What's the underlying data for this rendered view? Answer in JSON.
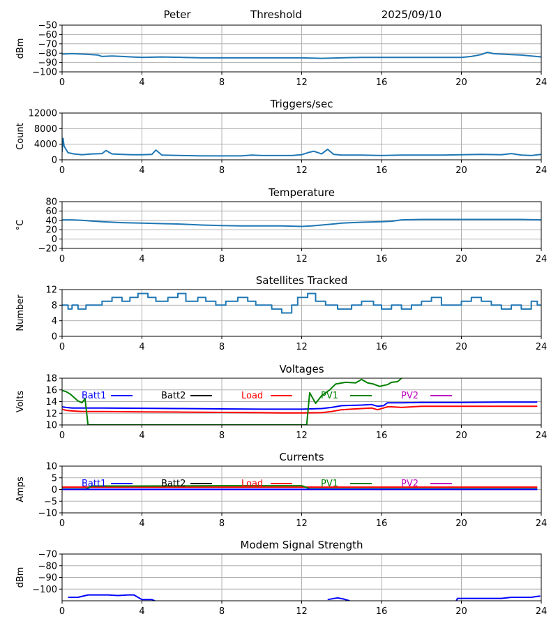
{
  "header": {
    "station": "Peter",
    "mode": "Threshold",
    "date": "2025/09/10"
  },
  "colors": {
    "series": "#1f77b4",
    "batt1": "#0000ff",
    "batt2": "#000000",
    "load": "#ff0000",
    "pv1": "#008000",
    "pv2": "#bf00bf",
    "grid": "#b0b0b0"
  },
  "chart_data": [
    {
      "type": "line",
      "title": "",
      "xlabel": "",
      "ylabel": "dBm",
      "xlim": [
        0,
        24
      ],
      "ylim": [
        -100,
        -50
      ],
      "xticks": [
        0,
        4,
        8,
        12,
        16,
        20,
        24
      ],
      "yticks": [
        -100,
        -90,
        -80,
        -70,
        -60,
        -50
      ],
      "ytick_labels": [
        "−100",
        "−90",
        "−80",
        "−70",
        "−60",
        "−50"
      ],
      "grid": true,
      "series": [
        {
          "color": "#1f77b4",
          "x": [
            0,
            0.5,
            1,
            1.5,
            1.8,
            2,
            2.5,
            3,
            3.5,
            4,
            5,
            6,
            7,
            8,
            9,
            10,
            11,
            12,
            13,
            14,
            15,
            16,
            17,
            18,
            19,
            20,
            20.5,
            21,
            21.3,
            21.6,
            22,
            22.5,
            23,
            23.5,
            24
          ],
          "y": [
            -81,
            -80.5,
            -81,
            -81.5,
            -82,
            -83.5,
            -83,
            -83.5,
            -84,
            -84.5,
            -84,
            -84.5,
            -85,
            -85,
            -85,
            -85,
            -85,
            -85,
            -85.5,
            -85,
            -84.5,
            -84.5,
            -84.5,
            -84.5,
            -84.5,
            -84.5,
            -83.5,
            -81.5,
            -79,
            -80.5,
            -81,
            -81.5,
            -82,
            -83,
            -84
          ]
        }
      ]
    },
    {
      "type": "line",
      "title": "Triggers/sec",
      "xlabel": "",
      "ylabel": "Count",
      "xlim": [
        0,
        24
      ],
      "ylim": [
        0,
        12000
      ],
      "xticks": [
        0,
        4,
        8,
        12,
        16,
        20,
        24
      ],
      "yticks": [
        0,
        4000,
        8000,
        12000
      ],
      "ytick_labels": [
        "0",
        "4000",
        "8000",
        "12000"
      ],
      "grid": true,
      "series": [
        {
          "color": "#1f77b4",
          "x": [
            0,
            0.05,
            0.1,
            0.3,
            0.6,
            1,
            1.5,
            2,
            2.2,
            2.5,
            3,
            3.5,
            4,
            4.5,
            4.7,
            5,
            6,
            7,
            8,
            9,
            9.5,
            10,
            11,
            11.5,
            12,
            12.3,
            12.6,
            13,
            13.3,
            13.6,
            14,
            15,
            16,
            17,
            18,
            19,
            20,
            21,
            22,
            22.5,
            23,
            23.5,
            24
          ],
          "y": [
            2000,
            5500,
            3500,
            1800,
            1500,
            1300,
            1500,
            1600,
            2400,
            1500,
            1400,
            1300,
            1300,
            1400,
            2500,
            1200,
            1100,
            1000,
            1000,
            1000,
            1200,
            1100,
            1100,
            1100,
            1300,
            1800,
            2200,
            1500,
            2700,
            1400,
            1200,
            1200,
            1100,
            1200,
            1200,
            1200,
            1300,
            1400,
            1300,
            1600,
            1200,
            1100,
            1400
          ]
        }
      ]
    },
    {
      "type": "line",
      "title": "Temperature",
      "xlabel": "",
      "ylabel": "°C",
      "xlim": [
        0,
        24
      ],
      "ylim": [
        -20,
        80
      ],
      "xticks": [
        0,
        4,
        8,
        12,
        16,
        20,
        24
      ],
      "yticks": [
        -20,
        0,
        20,
        40,
        60,
        80
      ],
      "ytick_labels": [
        "−20",
        "0",
        "20",
        "40",
        "60",
        "80"
      ],
      "grid": true,
      "series": [
        {
          "color": "#1f77b4",
          "x": [
            0,
            0.5,
            1,
            2,
            3,
            4,
            5,
            6,
            7,
            8,
            9,
            10,
            11,
            12,
            12.5,
            13,
            13.5,
            14,
            15,
            16,
            16.5,
            17,
            18,
            19,
            20,
            21,
            22,
            23,
            24
          ],
          "y": [
            41,
            41,
            40,
            37,
            35,
            34,
            33,
            32,
            30,
            29,
            28,
            28,
            28,
            27,
            28,
            30,
            32,
            34,
            36,
            37,
            38,
            41,
            42,
            42,
            42,
            42,
            42,
            42,
            41
          ]
        }
      ]
    },
    {
      "type": "line",
      "title": "Satellites Tracked",
      "xlabel": "",
      "ylabel": "Number",
      "xlim": [
        0,
        24
      ],
      "ylim": [
        0,
        12
      ],
      "xticks": [
        0,
        4,
        8,
        12,
        16,
        20,
        24
      ],
      "yticks": [
        0,
        4,
        8,
        12
      ],
      "ytick_labels": [
        "0",
        "4",
        "8",
        "12"
      ],
      "grid": true,
      "series": [
        {
          "color": "#1f77b4",
          "step": true,
          "x": [
            0,
            0.3,
            0.5,
            0.8,
            1.2,
            2,
            2.5,
            3,
            3.4,
            3.8,
            4.3,
            4.7,
            5.3,
            5.8,
            6.2,
            6.8,
            7.2,
            7.7,
            8.2,
            8.8,
            9.3,
            9.7,
            10.5,
            11,
            11.5,
            11.8,
            12.3,
            12.7,
            13.2,
            13.8,
            14.5,
            15,
            15.6,
            16,
            16.5,
            17,
            17.5,
            18,
            18.5,
            19,
            20,
            20.5,
            21,
            21.5,
            22,
            22.5,
            23,
            23.5,
            23.8,
            24
          ],
          "y": [
            8,
            7,
            8,
            7,
            8,
            9,
            10,
            9,
            10,
            11,
            10,
            9,
            10,
            11,
            9,
            10,
            9,
            8,
            9,
            10,
            9,
            8,
            7,
            6,
            8,
            10,
            11,
            9,
            8,
            7,
            8,
            9,
            8,
            7,
            8,
            7,
            8,
            9,
            10,
            8,
            9,
            10,
            9,
            8,
            7,
            8,
            7,
            9,
            8,
            8
          ]
        }
      ]
    },
    {
      "type": "line",
      "title": "Voltages",
      "xlabel": "",
      "ylabel": "Volts",
      "xlim": [
        0,
        24
      ],
      "ylim": [
        10,
        18
      ],
      "xticks": [
        0,
        4,
        8,
        12,
        16,
        20,
        24
      ],
      "yticks": [
        10,
        12,
        14,
        16,
        18
      ],
      "ytick_labels": [
        "10",
        "12",
        "14",
        "16",
        "18"
      ],
      "grid": true,
      "legend": [
        "Batt1",
        "Batt2",
        "Load",
        "PV1",
        "PV2"
      ],
      "legend_placement": "top",
      "series": [
        {
          "name": "Batt1",
          "color": "#0000ff",
          "x": [
            0,
            0.2,
            0.5,
            1,
            2,
            4,
            6,
            8,
            10,
            12,
            13,
            13.5,
            14,
            15,
            15.5,
            15.8,
            16.1,
            16.3,
            16.5,
            17,
            18,
            20,
            22,
            23.8
          ],
          "y": [
            13.1,
            13.0,
            12.9,
            12.9,
            12.9,
            12.85,
            12.8,
            12.75,
            12.7,
            12.7,
            12.8,
            13.0,
            13.3,
            13.4,
            13.5,
            13.2,
            13.3,
            13.8,
            13.8,
            13.8,
            13.85,
            13.85,
            13.9,
            13.9
          ]
        },
        {
          "name": "Load",
          "color": "#ff0000",
          "x": [
            0,
            0.2,
            0.5,
            1,
            2,
            4,
            6,
            8,
            10,
            11,
            12,
            13,
            13.5,
            14,
            15,
            15.5,
            15.8,
            16.1,
            16.3,
            16.5,
            17,
            18,
            20,
            22,
            23.8
          ],
          "y": [
            12.7,
            12.5,
            12.4,
            12.3,
            12.3,
            12.25,
            12.2,
            12.15,
            12.1,
            12.05,
            12.05,
            12.1,
            12.3,
            12.6,
            12.8,
            12.9,
            12.6,
            12.9,
            13.1,
            13.1,
            13.0,
            13.2,
            13.2,
            13.2,
            13.2
          ]
        },
        {
          "name": "PV1",
          "color": "#008000",
          "x": [
            0,
            0.2,
            0.4,
            0.7,
            0.8,
            1.0,
            1.15,
            1.3,
            12.0,
            12.25,
            12.4,
            12.7,
            13.0,
            13.4,
            13.7,
            14.2,
            14.7,
            15.0,
            15.3,
            15.6,
            15.9,
            16.3,
            16.5,
            16.8,
            17.0
          ],
          "y": [
            15.9,
            15.7,
            15.3,
            14.4,
            14.1,
            13.8,
            14.5,
            10,
            10,
            10,
            15.5,
            13.7,
            15.0,
            16.0,
            17.0,
            17.3,
            17.2,
            17.8,
            17.2,
            17.0,
            16.6,
            16.9,
            17.3,
            17.4,
            18
          ]
        }
      ]
    },
    {
      "type": "line",
      "title": "Currents",
      "xlabel": "",
      "ylabel": "Amps",
      "xlim": [
        0,
        24
      ],
      "ylim": [
        -10,
        10
      ],
      "xticks": [
        0,
        4,
        8,
        12,
        16,
        20,
        24
      ],
      "yticks": [
        -10,
        -5,
        0,
        5,
        10
      ],
      "ytick_labels": [
        "−10",
        "−5",
        "0",
        "5",
        "10"
      ],
      "grid": true,
      "legend": [
        "Batt1",
        "Batt2",
        "Load",
        "PV1",
        "PV2"
      ],
      "legend_placement": "top",
      "series": [
        {
          "name": "Load",
          "color": "#ff0000",
          "x": [
            0,
            4,
            8,
            12,
            16,
            20,
            23.8
          ],
          "y": [
            1.0,
            1.0,
            1.0,
            1.0,
            1.0,
            1.0,
            1.0
          ]
        },
        {
          "name": "PV1",
          "color": "#008000",
          "x": [
            0,
            1.2,
            1.5,
            4,
            8,
            12,
            12.2,
            12.4,
            16,
            20,
            23.8
          ],
          "y": [
            0.2,
            0.2,
            1.5,
            1.5,
            1.6,
            1.6,
            1.0,
            0.3,
            0.3,
            0.3,
            0.3
          ]
        },
        {
          "name": "PV2",
          "color": "#bf00bf",
          "x": [
            0,
            4,
            8,
            12,
            16,
            20,
            23.8
          ],
          "y": [
            0,
            0,
            0,
            0,
            0,
            0,
            0
          ]
        },
        {
          "name": "Batt1",
          "color": "#0000ff",
          "x": [
            0,
            4,
            8,
            12,
            16,
            20,
            23.8
          ],
          "y": [
            0.1,
            0.1,
            0.1,
            0.1,
            0.1,
            0.1,
            0.1
          ]
        }
      ]
    },
    {
      "type": "line",
      "title": "Modem Signal Strength",
      "xlabel": "",
      "ylabel": "dBm",
      "xlim": [
        0,
        24
      ],
      "ylim": [
        -110,
        -70
      ],
      "xticks": [
        0,
        4,
        8,
        12,
        16,
        20,
        24
      ],
      "yticks": [
        -100,
        -90,
        -80,
        -70
      ],
      "ytick_labels": [
        "−100",
        "−90",
        "−80",
        "−70"
      ],
      "grid": true,
      "series": [
        {
          "color": "#0000ff",
          "x": [
            0.3,
            0.8,
            1.3,
            2.3,
            2.8,
            3.3,
            3.6,
            4.0,
            4.5,
            4.65
          ],
          "y": [
            -107,
            -107,
            -105,
            -105,
            -105.5,
            -105,
            -105,
            -109,
            -109,
            -110
          ]
        },
        {
          "color": "#0000ff",
          "x": [
            13.3,
            13.8,
            14.1,
            14.4
          ],
          "y": [
            -109,
            -107.5,
            -108.5,
            -110
          ]
        },
        {
          "color": "#0000ff",
          "x": [
            19.75,
            19.8,
            20,
            22,
            22.5,
            23.5,
            23.7,
            23.95
          ],
          "y": [
            -110,
            -108,
            -108,
            -108,
            -107,
            -107,
            -106.5,
            -106
          ]
        }
      ]
    }
  ]
}
